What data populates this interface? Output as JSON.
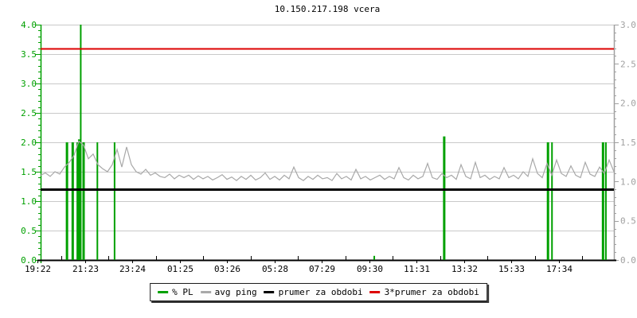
{
  "window": {
    "title": "10.150.217.198 vcera"
  },
  "legend": {
    "items": [
      {
        "label": "% PL",
        "color": "#00A000"
      },
      {
        "label": "avg ping",
        "color": "#A8A8A8"
      },
      {
        "label": "prumer za obdobi",
        "color": "#000000"
      },
      {
        "label": "3*prumer za obdobi",
        "color": "#DD0000"
      }
    ]
  },
  "chart_data": {
    "type": "line",
    "title": "10.150.217.198 vcera",
    "x_tick_labels": [
      "19:22",
      "21:23",
      "23:24",
      "01:25",
      "03:26",
      "05:28",
      "07:29",
      "09:30",
      "11:31",
      "13:32",
      "15:33",
      "17:34"
    ],
    "axes": {
      "left": {
        "min": 0,
        "max": 4,
        "major_step": 0.5,
        "minor_step": 0.1,
        "color": "#00A000",
        "tick_labels": [
          "4.0",
          "3.5",
          "3.0",
          "2.5",
          "2.0",
          "1.5",
          "1.0",
          "0.5",
          "0.0"
        ]
      },
      "right": {
        "min": 0,
        "max": 3,
        "major_step": 0.5,
        "minor_step": 0.1,
        "color": "#A0A0A0",
        "tick_labels": [
          "3.0",
          "2.5",
          "2.0",
          "1.5",
          "1.0",
          "0.5",
          "0.0"
        ]
      }
    },
    "grid": {
      "color": "#C9C9C9",
      "step": 0.5,
      "vertical": false
    },
    "series": [
      {
        "name": "% PL",
        "type": "bars",
        "axis": "left",
        "color": "#00A000",
        "events": [
          {
            "t": 0.046,
            "w": 3,
            "value": 2.0
          },
          {
            "t": 0.056,
            "w": 3,
            "value": 2.0
          },
          {
            "t": 0.064,
            "w": 2,
            "value": 2.0
          },
          {
            "t": 0.068,
            "w": 4,
            "value": 2.05
          },
          {
            "t": 0.07,
            "w": 2,
            "value": 4.0
          },
          {
            "t": 0.075,
            "w": 3,
            "value": 2.0
          },
          {
            "t": 0.099,
            "w": 2,
            "value": 2.0
          },
          {
            "t": 0.129,
            "w": 2,
            "value": 2.0
          },
          {
            "t": 0.582,
            "w": 2,
            "value": 0.07
          },
          {
            "t": 0.704,
            "w": 3,
            "value": 2.1
          },
          {
            "t": 0.885,
            "w": 3,
            "value": 2.0
          },
          {
            "t": 0.892,
            "w": 2,
            "value": 2.0
          },
          {
            "t": 0.981,
            "w": 3,
            "value": 2.0
          },
          {
            "t": 0.986,
            "w": 2,
            "value": 2.0
          }
        ]
      },
      {
        "name": "avg ping",
        "type": "line",
        "axis": "left",
        "color": "#A8A8A8",
        "values": [
          1.44,
          1.48,
          1.42,
          1.5,
          1.46,
          1.58,
          1.66,
          1.78,
          2.02,
          1.95,
          1.72,
          1.8,
          1.62,
          1.55,
          1.5,
          1.62,
          1.88,
          1.58,
          1.92,
          1.62,
          1.5,
          1.46,
          1.54,
          1.44,
          1.48,
          1.42,
          1.4,
          1.46,
          1.38,
          1.44,
          1.4,
          1.44,
          1.37,
          1.43,
          1.38,
          1.42,
          1.36,
          1.4,
          1.45,
          1.37,
          1.41,
          1.35,
          1.42,
          1.37,
          1.44,
          1.36,
          1.4,
          1.48,
          1.37,
          1.42,
          1.36,
          1.44,
          1.38,
          1.58,
          1.4,
          1.35,
          1.42,
          1.37,
          1.44,
          1.38,
          1.4,
          1.35,
          1.47,
          1.38,
          1.42,
          1.36,
          1.54,
          1.38,
          1.42,
          1.36,
          1.4,
          1.44,
          1.37,
          1.42,
          1.38,
          1.57,
          1.4,
          1.36,
          1.44,
          1.38,
          1.42,
          1.64,
          1.4,
          1.37,
          1.47,
          1.4,
          1.44,
          1.37,
          1.62,
          1.42,
          1.38,
          1.66,
          1.4,
          1.44,
          1.37,
          1.42,
          1.38,
          1.57,
          1.4,
          1.44,
          1.38,
          1.5,
          1.42,
          1.72,
          1.47,
          1.4,
          1.64,
          1.44,
          1.7,
          1.47,
          1.42,
          1.6,
          1.44,
          1.4,
          1.66,
          1.46,
          1.42,
          1.58,
          1.47,
          1.7,
          1.5
        ]
      },
      {
        "name": "prumer za obdobi",
        "type": "hline",
        "axis": "left",
        "color": "#000000",
        "value": 1.2,
        "thickness": 3
      },
      {
        "name": "3*prumer za obdobi",
        "type": "hline",
        "axis": "left",
        "color": "#DD0000",
        "value": 3.6,
        "thickness": 2
      }
    ]
  }
}
